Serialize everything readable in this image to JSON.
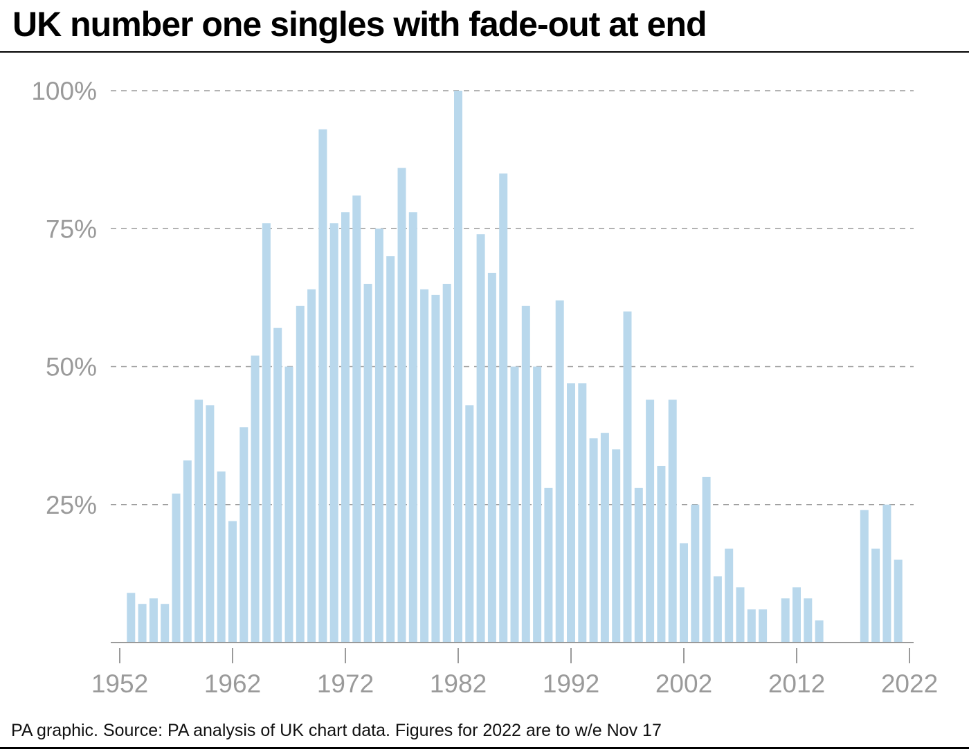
{
  "title": "UK number one singles with fade-out at end",
  "footer": "PA graphic. Source: PA analysis of UK chart data. Figures for 2022 are to w/e Nov 17",
  "colors": {
    "bar": "#b9d8ec",
    "grid": "#9a9a9a",
    "tick_text": "#9a9a9a",
    "axis": "#9a9a9a"
  },
  "chart_data": {
    "type": "bar",
    "title": "UK number one singles with fade-out at end",
    "xlabel": "",
    "ylabel": "",
    "ylim": [
      0,
      100
    ],
    "y_ticks": [
      25,
      50,
      75,
      100
    ],
    "y_tick_labels": [
      "25%",
      "50%",
      "75%",
      "100%"
    ],
    "x_ticks": [
      1952,
      1962,
      1972,
      1982,
      1992,
      2002,
      2012,
      2022
    ],
    "x_tick_labels": [
      "1952",
      "1962",
      "1972",
      "1982",
      "1992",
      "2002",
      "2012",
      "2022"
    ],
    "grid": "horizontal dashed",
    "x": [
      1953,
      1954,
      1955,
      1956,
      1957,
      1958,
      1959,
      1960,
      1961,
      1962,
      1963,
      1964,
      1965,
      1966,
      1967,
      1968,
      1969,
      1970,
      1971,
      1972,
      1973,
      1974,
      1975,
      1976,
      1977,
      1978,
      1979,
      1980,
      1981,
      1982,
      1983,
      1984,
      1985,
      1986,
      1987,
      1988,
      1989,
      1990,
      1991,
      1992,
      1993,
      1994,
      1995,
      1996,
      1997,
      1998,
      1999,
      2000,
      2001,
      2002,
      2003,
      2004,
      2005,
      2006,
      2007,
      2008,
      2009,
      2010,
      2011,
      2012,
      2013,
      2014,
      2015,
      2016,
      2017,
      2018,
      2019,
      2020,
      2021,
      2022
    ],
    "values": [
      9,
      7,
      8,
      7,
      27,
      33,
      44,
      43,
      31,
      22,
      39,
      52,
      76,
      57,
      50,
      61,
      64,
      93,
      76,
      78,
      81,
      65,
      75,
      70,
      86,
      78,
      64,
      63,
      65,
      100,
      43,
      74,
      67,
      85,
      50,
      61,
      50,
      28,
      62,
      47,
      47,
      37,
      38,
      35,
      60,
      28,
      44,
      32,
      44,
      18,
      25,
      30,
      12,
      17,
      10,
      6,
      6,
      0,
      8,
      10,
      8,
      4,
      0,
      0,
      0,
      24,
      17,
      25,
      15,
      0
    ]
  }
}
